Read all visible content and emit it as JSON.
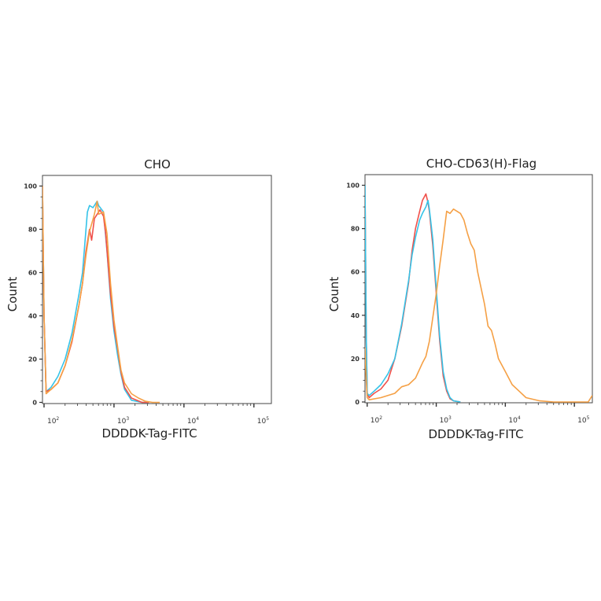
{
  "chart_data": [
    {
      "type": "line",
      "title": "CHO",
      "xlabel": "DDDDK-Tag-FITC",
      "ylabel": "Count",
      "xscale": "log",
      "xlim": [
        95,
        177828
      ],
      "ylim": [
        0,
        105
      ],
      "x_tick_exponents": [
        2,
        3,
        4,
        5
      ],
      "x_tick_base": "10",
      "y_ticks": [
        "0",
        "20",
        "40",
        "60",
        "80",
        "100"
      ],
      "grid": false,
      "legend": "none",
      "series": [
        {
          "color": "#35c3e8",
          "points": [
            [
              95,
              100
            ],
            [
              100,
              40
            ],
            [
              107,
              5
            ],
            [
              126,
              7
            ],
            [
              158,
              12
            ],
            [
              200,
              20
            ],
            [
              251,
              32
            ],
            [
              316,
              50
            ],
            [
              355,
              60
            ],
            [
              398,
              80
            ],
            [
              417,
              88
            ],
            [
              447,
              91
            ],
            [
              501,
              90
            ],
            [
              575,
              93
            ],
            [
              603,
              91
            ],
            [
              708,
              88
            ],
            [
              794,
              70
            ],
            [
              891,
              48
            ],
            [
              1000,
              33
            ],
            [
              1122,
              22
            ],
            [
              1259,
              13
            ],
            [
              1413,
              6
            ],
            [
              1778,
              1
            ],
            [
              2512,
              0
            ],
            [
              3162,
              0
            ]
          ]
        },
        {
          "color": "#f0504a",
          "points": [
            [
              95,
              100
            ],
            [
              100,
              40
            ],
            [
              107,
              5
            ],
            [
              126,
              6
            ],
            [
              158,
              9
            ],
            [
              200,
              17
            ],
            [
              251,
              28
            ],
            [
              316,
              45
            ],
            [
              355,
              55
            ],
            [
              398,
              70
            ],
            [
              447,
              80
            ],
            [
              479,
              75
            ],
            [
              525,
              85
            ],
            [
              631,
              89
            ],
            [
              708,
              86
            ],
            [
              759,
              78
            ],
            [
              891,
              50
            ],
            [
              933,
              45
            ],
            [
              1000,
              35
            ],
            [
              1122,
              25
            ],
            [
              1259,
              14
            ],
            [
              1413,
              7
            ],
            [
              1778,
              2
            ],
            [
              2512,
              0
            ],
            [
              3162,
              0
            ]
          ]
        },
        {
          "color": "#f5a045",
          "points": [
            [
              95,
              100
            ],
            [
              100,
              40
            ],
            [
              107,
              4
            ],
            [
              126,
              6
            ],
            [
              158,
              9
            ],
            [
              200,
              17
            ],
            [
              251,
              29
            ],
            [
              316,
              45
            ],
            [
              355,
              55
            ],
            [
              398,
              68
            ],
            [
              447,
              79
            ],
            [
              525,
              87
            ],
            [
              575,
              93
            ],
            [
              603,
              87
            ],
            [
              708,
              88
            ],
            [
              794,
              78
            ],
            [
              891,
              55
            ],
            [
              1000,
              38
            ],
            [
              1122,
              26
            ],
            [
              1259,
              15
            ],
            [
              1413,
              9
            ],
            [
              1778,
              4
            ],
            [
              2239,
              2
            ],
            [
              2818,
              0.5
            ],
            [
              3548,
              0
            ],
            [
              4500,
              0
            ]
          ]
        }
      ]
    },
    {
      "type": "line",
      "title": "CHO-CD63(H)-Flag",
      "xlabel": "DDDDK-Tag-FITC",
      "ylabel": "Count",
      "xscale": "log",
      "xlim": [
        93,
        181970
      ],
      "ylim": [
        0,
        105
      ],
      "x_tick_exponents": [
        2,
        3,
        4,
        5
      ],
      "x_tick_base": "10",
      "y_ticks": [
        "0",
        "20",
        "40",
        "60",
        "80",
        "100"
      ],
      "grid": false,
      "legend": "none",
      "series": [
        {
          "color": "#f0504a",
          "points": [
            [
              93,
              100
            ],
            [
              97,
              30
            ],
            [
              100,
              4
            ],
            [
              107,
              2
            ],
            [
              126,
              4
            ],
            [
              158,
              6
            ],
            [
              200,
              10
            ],
            [
              251,
              20
            ],
            [
              316,
              35
            ],
            [
              398,
              55
            ],
            [
              447,
              70
            ],
            [
              501,
              80
            ],
            [
              575,
              88
            ],
            [
              631,
              93
            ],
            [
              708,
              96
            ],
            [
              759,
              92
            ],
            [
              794,
              88
            ],
            [
              891,
              72
            ],
            [
              1000,
              50
            ],
            [
              1122,
              28
            ],
            [
              1259,
              12
            ],
            [
              1413,
              5
            ],
            [
              1585,
              1.5
            ],
            [
              1778,
              0.5
            ],
            [
              2239,
              0
            ]
          ]
        },
        {
          "color": "#35c3e8",
          "points": [
            [
              93,
              100
            ],
            [
              97,
              30
            ],
            [
              100,
              4
            ],
            [
              107,
              3
            ],
            [
              126,
              5
            ],
            [
              158,
              8
            ],
            [
              200,
              13
            ],
            [
              251,
              20
            ],
            [
              316,
              36
            ],
            [
              398,
              56
            ],
            [
              447,
              68
            ],
            [
              501,
              76
            ],
            [
              575,
              84
            ],
            [
              631,
              87
            ],
            [
              708,
              90
            ],
            [
              759,
              93
            ],
            [
              794,
              89
            ],
            [
              891,
              75
            ],
            [
              1000,
              52
            ],
            [
              1122,
              30
            ],
            [
              1259,
              14
            ],
            [
              1413,
              6
            ],
            [
              1585,
              2
            ],
            [
              1778,
              0.5
            ],
            [
              2239,
              0
            ]
          ]
        },
        {
          "color": "#f5a045",
          "points": [
            [
              93,
              25
            ],
            [
              97,
              10
            ],
            [
              100,
              2
            ],
            [
              107,
              1
            ],
            [
              158,
              2
            ],
            [
              251,
              4
            ],
            [
              316,
              7
            ],
            [
              398,
              8
            ],
            [
              501,
              11
            ],
            [
              631,
              18
            ],
            [
              708,
              21
            ],
            [
              794,
              28
            ],
            [
              1000,
              50
            ],
            [
              1122,
              63
            ],
            [
              1259,
              75
            ],
            [
              1413,
              88
            ],
            [
              1585,
              87
            ],
            [
              1778,
              89
            ],
            [
              1995,
              88
            ],
            [
              2239,
              87
            ],
            [
              2512,
              84
            ],
            [
              2818,
              78
            ],
            [
              3162,
              73
            ],
            [
              3548,
              70
            ],
            [
              3981,
              60
            ],
            [
              5012,
              45
            ],
            [
              5623,
              35
            ],
            [
              6310,
              33
            ],
            [
              7079,
              27
            ],
            [
              7943,
              20
            ],
            [
              10000,
              14
            ],
            [
              12589,
              8
            ],
            [
              15849,
              5
            ],
            [
              19953,
              2
            ],
            [
              31623,
              0.5
            ],
            [
              50119,
              0
            ],
            [
              158489,
              0
            ],
            [
              181970,
              3
            ]
          ]
        }
      ]
    }
  ]
}
